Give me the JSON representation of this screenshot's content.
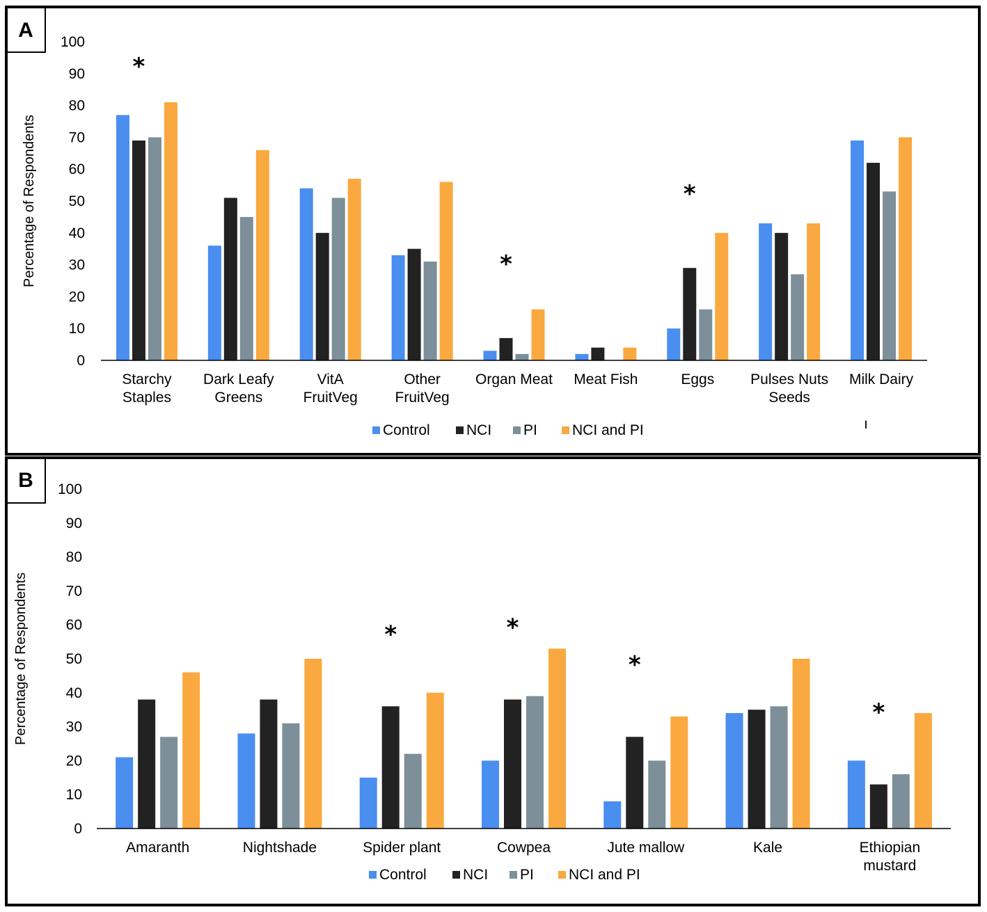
{
  "colors": {
    "Control": "#4a8ef0",
    "NCI": "#222222",
    "PI": "#7d8f99",
    "NCI and PI": "#f9a93f"
  },
  "chart_data": [
    {
      "panel": "A",
      "type": "bar",
      "ylabel": "Percentage of Respondents",
      "ylim": [
        0,
        100
      ],
      "yticks": [
        "0",
        "10",
        "20",
        "30",
        "40",
        "50",
        "60",
        "70",
        "80",
        "90",
        "100"
      ],
      "categories": [
        [
          "Starchy",
          "Staples"
        ],
        [
          "Dark Leafy",
          "Greens"
        ],
        [
          "VitA",
          "FruitVeg"
        ],
        [
          "Other",
          "FruitVeg"
        ],
        [
          "Organ Meat"
        ],
        [
          "Meat Fish"
        ],
        [
          "Eggs"
        ],
        [
          "Pulses Nuts",
          "Seeds"
        ],
        [
          "Milk Dairy"
        ]
      ],
      "series": [
        {
          "name": "Control",
          "values": [
            77,
            36,
            54,
            33,
            3,
            2,
            10,
            43,
            69
          ]
        },
        {
          "name": "NCI",
          "values": [
            69,
            51,
            40,
            35,
            7,
            4,
            29,
            40,
            62
          ]
        },
        {
          "name": "PI",
          "values": [
            70,
            45,
            51,
            31,
            2,
            0,
            16,
            27,
            53
          ]
        },
        {
          "name": "NCI and PI",
          "values": [
            81,
            66,
            57,
            56,
            16,
            4,
            40,
            43,
            70
          ]
        }
      ],
      "significant": [
        "*",
        "",
        "",
        "",
        "*",
        "",
        "*",
        "",
        ""
      ],
      "legend": [
        "Control",
        "NCI",
        "PI",
        "NCI and PI"
      ],
      "stray_mark": "ı"
    },
    {
      "panel": "B",
      "type": "bar",
      "ylabel": "Percentage of Respondents",
      "ylim": [
        0,
        100
      ],
      "yticks": [
        "0",
        "10",
        "20",
        "30",
        "40",
        "50",
        "60",
        "70",
        "80",
        "90",
        "100"
      ],
      "categories": [
        [
          "Amaranth"
        ],
        [
          "Nightshade"
        ],
        [
          "Spider plant"
        ],
        [
          "Cowpea"
        ],
        [
          "Jute mallow"
        ],
        [
          "Kale"
        ],
        [
          "Ethiopian",
          "mustard"
        ]
      ],
      "series": [
        {
          "name": "Control",
          "values": [
            21,
            28,
            15,
            20,
            8,
            34,
            20
          ]
        },
        {
          "name": "NCI",
          "values": [
            38,
            38,
            36,
            38,
            27,
            35,
            13
          ]
        },
        {
          "name": "PI",
          "values": [
            27,
            31,
            22,
            39,
            20,
            36,
            16
          ]
        },
        {
          "name": "NCI and PI",
          "values": [
            46,
            50,
            40,
            53,
            33,
            50,
            34
          ]
        }
      ],
      "significant": [
        "",
        "",
        "*",
        "*",
        "*",
        "",
        "*"
      ],
      "legend": [
        "Control",
        "NCI",
        "PI",
        "NCI and PI"
      ]
    }
  ]
}
